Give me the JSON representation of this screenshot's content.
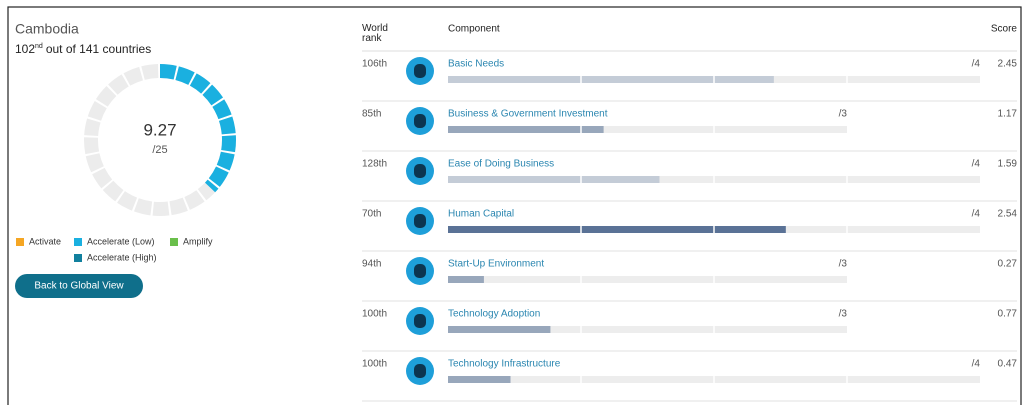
{
  "country": {
    "name": "Cambodia",
    "rank": "102",
    "rank_suffix": "nd",
    "rank_text": "out of 141 countries",
    "score": 9.27,
    "total": {
      "value": 25,
      "label": "/25"
    },
    "color": "#1ab0e0"
  },
  "legend": [
    {
      "name": "Activate",
      "color": "#f5a623"
    },
    {
      "name": "Accelerate (Low)",
      "color": "#1ab0e0"
    },
    {
      "name": "Amplify",
      "color": "#6abf4b"
    },
    {
      "name": "Accelerate (High)",
      "color": "#11809e"
    }
  ],
  "button": "Back to Global View",
  "table": {
    "headers": {
      "rank": "World rank",
      "component": "Component",
      "score": "Score"
    },
    "rows": [
      {
        "rank": "106th",
        "name": "Basic Needs",
        "max": {
          "value": 4,
          "label": "/4"
        },
        "score": 2.45,
        "color": "#c4ccd7"
      },
      {
        "rank": "85th",
        "name": "Business & Government Investment",
        "max": {
          "value": 3,
          "label": "/3"
        },
        "score": 1.17,
        "color": "#98a7bb"
      },
      {
        "rank": "128th",
        "name": "Ease of Doing Business",
        "max": {
          "value": 4,
          "label": "/4"
        },
        "score": 1.59,
        "color": "#c4ccd7"
      },
      {
        "rank": "70th",
        "name": "Human Capital",
        "max": {
          "value": 4,
          "label": "/4"
        },
        "score": 2.54,
        "color": "#5a7296"
      },
      {
        "rank": "94th",
        "name": "Start-Up Environment",
        "max": {
          "value": 3,
          "label": "/3"
        },
        "score": 0.27,
        "color": "#98a7bb"
      },
      {
        "rank": "100th",
        "name": "Technology Adoption",
        "max": {
          "value": 3,
          "label": "/3"
        },
        "score": 0.77,
        "color": "#98a7bb"
      },
      {
        "rank": "100th",
        "name": "Technology Infrastructure",
        "max": {
          "value": 4,
          "label": "/4"
        },
        "score": 0.47,
        "color": "#98a7bb"
      }
    ]
  }
}
